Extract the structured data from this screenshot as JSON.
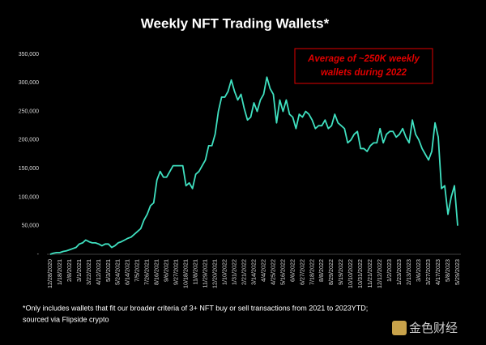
{
  "chart_data": {
    "type": "line",
    "title": "Weekly NFT Trading Wallets*",
    "annotation": [
      "Average of ~250K weekly",
      "wallets during 2022"
    ],
    "footnote": [
      "*Only includes wallets that fit our broader criteria of 3+ NFT buy or sell transactions from 2021 to 2023YTD;",
      "sourced via Flipside crypto"
    ],
    "watermark": "金色财经",
    "color": "#3fe0c0",
    "annotation_color": "#e00000",
    "ylim": [
      0,
      350000
    ],
    "yticks": [
      {
        "value": 0,
        "label": "-"
      },
      {
        "value": 50000,
        "label": "50,000"
      },
      {
        "value": 100000,
        "label": "100,000"
      },
      {
        "value": 150000,
        "label": "150,000"
      },
      {
        "value": 200000,
        "label": "200,000"
      },
      {
        "value": 250000,
        "label": "250,000"
      },
      {
        "value": 300000,
        "label": "300,000"
      },
      {
        "value": 350000,
        "label": "350,000"
      }
    ],
    "grid": false,
    "categories": [
      "12/28/2020",
      null,
      null,
      "1/18/2021",
      null,
      null,
      "2/8/2021",
      null,
      null,
      "3/1/2021",
      null,
      null,
      "3/22/2021",
      null,
      null,
      "4/12/2021",
      null,
      null,
      "5/3/2021",
      null,
      null,
      "5/24/2021",
      null,
      null,
      "6/14/2021",
      null,
      null,
      "7/5/2021",
      null,
      null,
      "7/26/2021",
      null,
      null,
      "8/16/2021",
      null,
      null,
      "9/6/2021",
      null,
      null,
      "9/27/2021",
      null,
      null,
      "10/18/2021",
      null,
      null,
      "11/8/2021",
      null,
      null,
      "11/29/2021",
      null,
      null,
      "12/20/2021",
      null,
      null,
      "1/10/2022",
      null,
      null,
      "1/31/2022",
      null,
      null,
      "2/21/2022",
      null,
      null,
      "3/14/2022",
      null,
      null,
      "4/4/2022",
      null,
      null,
      "4/25/2022",
      null,
      null,
      "5/16/2022",
      null,
      null,
      "6/6/2022",
      null,
      null,
      "6/27/2022",
      null,
      null,
      "7/18/2022",
      null,
      null,
      "8/8/2022",
      null,
      null,
      "8/29/2022",
      null,
      null,
      "9/19/2022",
      null,
      null,
      "10/10/2022",
      null,
      null,
      "10/31/2022",
      null,
      null,
      "11/21/2022",
      null,
      null,
      "12/12/2022",
      null,
      null,
      "1/2/2023",
      null,
      null,
      "1/23/2023",
      null,
      null,
      "2/13/2023",
      null,
      null,
      "3/6/2023",
      null,
      null,
      "3/27/2023",
      null,
      null,
      "4/17/2023",
      null,
      null,
      "5/8/2023",
      null,
      null,
      "5/29/2023"
    ],
    "values": [
      0,
      2000,
      3000,
      3000,
      5000,
      6000,
      8000,
      10000,
      12000,
      18000,
      20000,
      25000,
      22000,
      20000,
      20000,
      18000,
      15000,
      18000,
      18000,
      12000,
      15000,
      20000,
      22000,
      25000,
      28000,
      30000,
      35000,
      40000,
      45000,
      60000,
      70000,
      85000,
      90000,
      130000,
      145000,
      135000,
      135000,
      145000,
      155000,
      155000,
      155000,
      155000,
      120000,
      125000,
      115000,
      140000,
      145000,
      155000,
      165000,
      190000,
      190000,
      210000,
      250000,
      275000,
      275000,
      285000,
      305000,
      285000,
      270000,
      280000,
      255000,
      235000,
      240000,
      265000,
      250000,
      270000,
      280000,
      310000,
      290000,
      280000,
      230000,
      270000,
      250000,
      270000,
      245000,
      240000,
      220000,
      245000,
      240000,
      250000,
      245000,
      235000,
      220000,
      225000,
      225000,
      235000,
      220000,
      225000,
      245000,
      230000,
      225000,
      220000,
      195000,
      200000,
      210000,
      215000,
      185000,
      185000,
      180000,
      190000,
      195000,
      195000,
      220000,
      195000,
      210000,
      215000,
      215000,
      205000,
      210000,
      220000,
      205000,
      195000,
      235000,
      210000,
      200000,
      185000,
      175000,
      165000,
      180000,
      230000,
      205000,
      115000,
      120000,
      70000,
      100000,
      120000,
      50000
    ]
  }
}
